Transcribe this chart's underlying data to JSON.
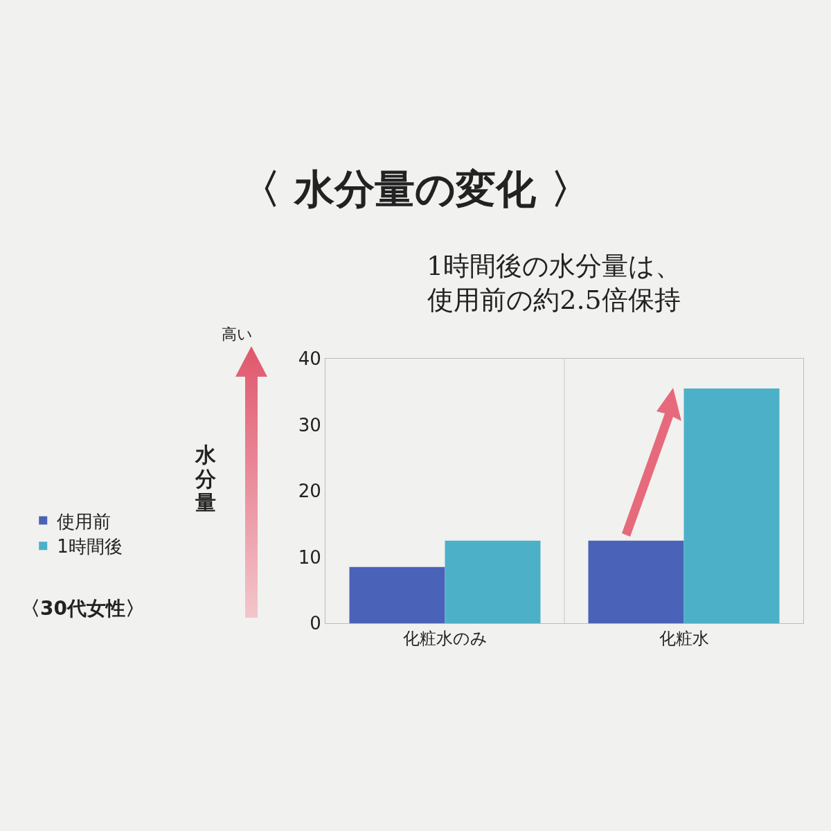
{
  "chart_data": {
    "type": "bar",
    "title": "〈 水分量の変化 〉",
    "subtitle": "1時間後の水分量は、使用前の約2.5倍保持",
    "ylabel": "水分量",
    "annotations": [
      "高い",
      "〈30代女性〉"
    ],
    "categories": [
      "化粧水のみ",
      "化粧水"
    ],
    "series": [
      {
        "name": "使用前",
        "color": "#4a62b8",
        "values": [
          8.5,
          12.5
        ]
      },
      {
        "name": "1時間後",
        "color": "#4cb0c8",
        "values": [
          12.5,
          35.5
        ]
      }
    ],
    "ylim": [
      0,
      40
    ],
    "yticks": [
      0,
      10,
      20,
      30,
      40
    ],
    "grid": "x",
    "legend": "left"
  }
}
